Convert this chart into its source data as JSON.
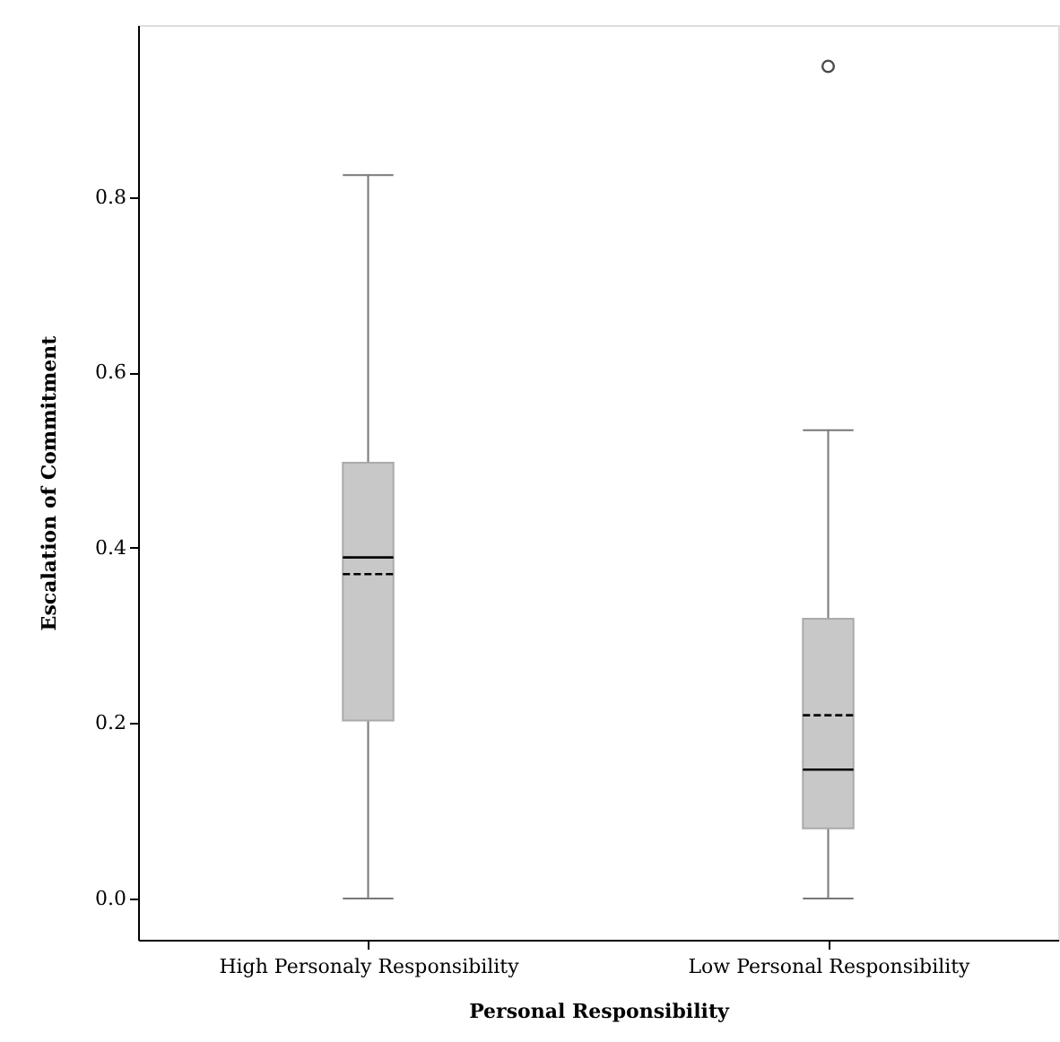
{
  "chart_data": {
    "type": "box",
    "xlabel": "Personal Responsibility",
    "ylabel": "Escalation of Commitment",
    "categories": [
      "High Personaly Responsibility",
      "Low Personal Responsibility"
    ],
    "boxes": [
      {
        "low": 0.0,
        "q1": 0.203,
        "median": 0.389,
        "q3": 0.497,
        "high": 0.825,
        "mean": 0.37
      },
      {
        "low": 0.0,
        "q1": 0.08,
        "median": 0.147,
        "q3": 0.319,
        "high": 0.534,
        "mean": 0.209,
        "outliers": [
          0.949
        ]
      }
    ],
    "color": "#c8c8c8",
    "ylim": [
      -0.047,
      0.996
    ],
    "yticks": [
      {
        "value": 0,
        "label": "0.0"
      },
      {
        "value": 0.2,
        "label": "0.2"
      },
      {
        "value": 0.4,
        "label": "0.4"
      },
      {
        "value": 0.6,
        "label": "0.6"
      },
      {
        "value": 0.8,
        "label": "0.8"
      }
    ],
    "grid": false
  }
}
